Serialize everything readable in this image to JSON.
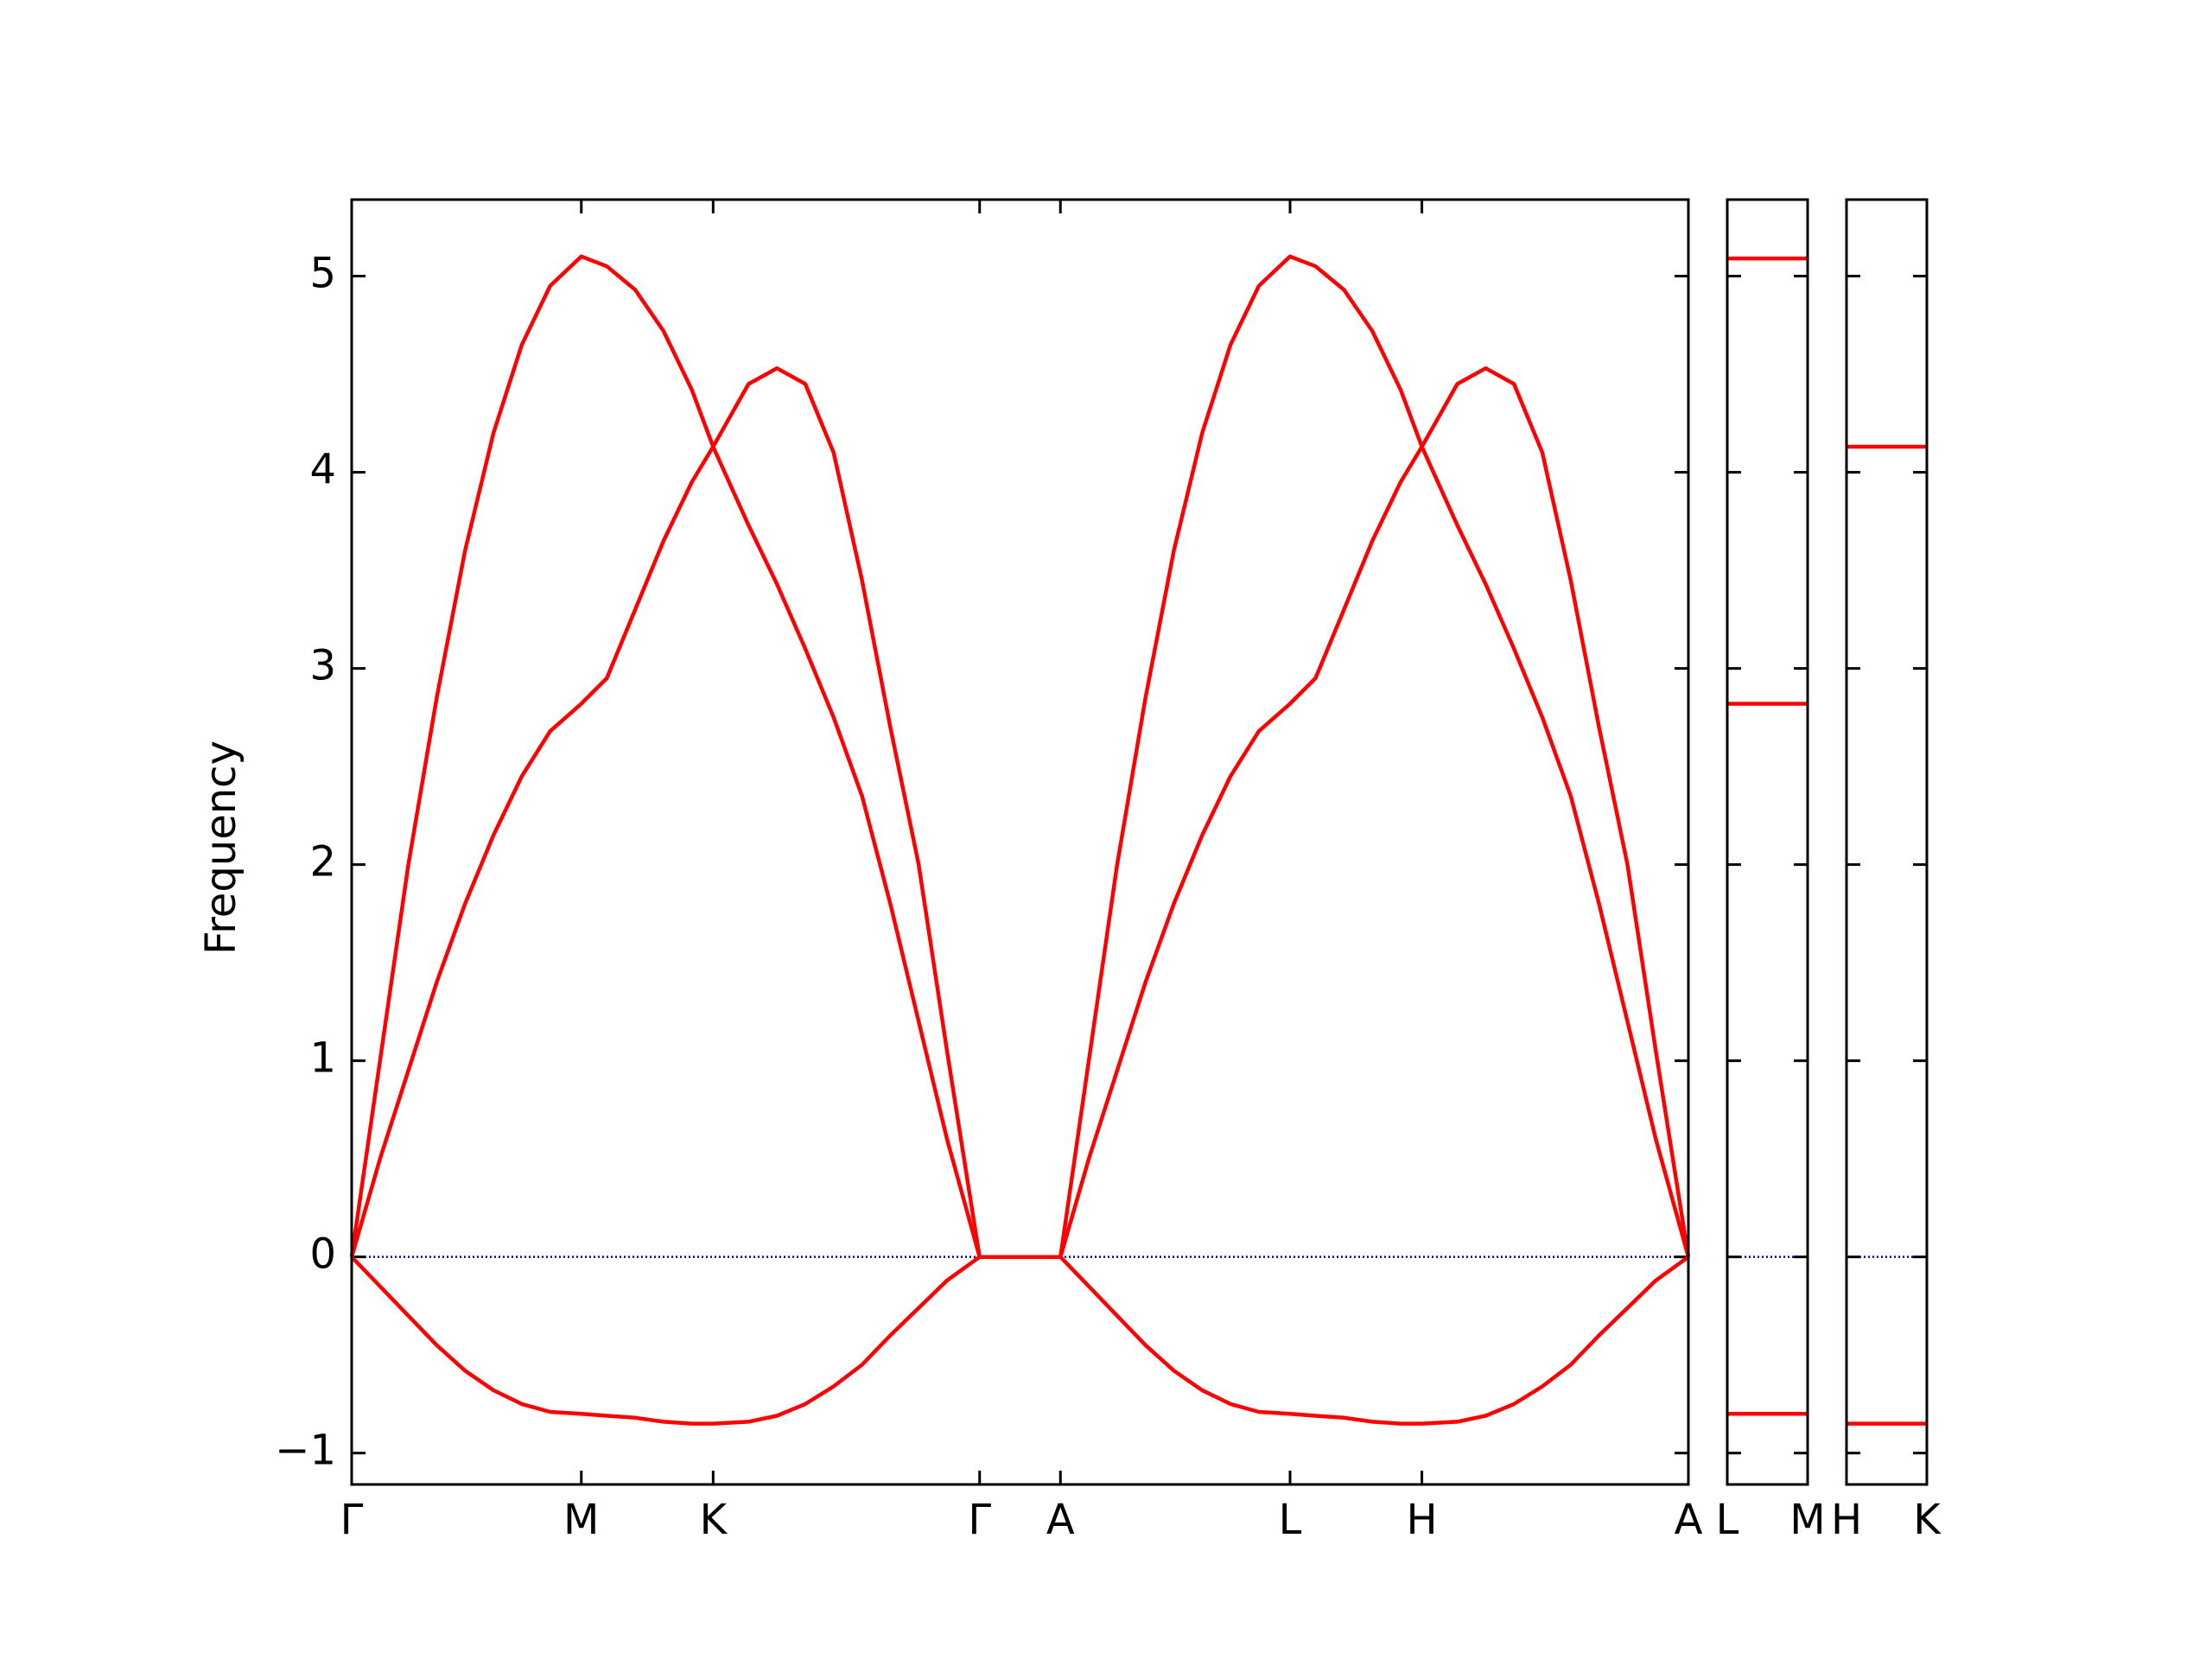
{
  "chart_data": [
    {
      "type": "line",
      "ylabel": "Frequency",
      "color": "#ff0000",
      "zero_line": true,
      "zero_line_color": "#0000cc",
      "x": [
        0,
        0.2,
        0.4,
        0.6,
        0.8,
        1.0,
        1.2,
        1.4,
        1.62,
        1.8,
        2.0,
        2.2,
        2.4,
        2.55,
        2.8,
        3.0,
        3.2,
        3.4,
        3.6,
        3.8,
        4.0,
        4.2,
        4.43,
        5.0,
        5.2,
        5.4,
        5.6,
        5.8,
        6.0,
        6.2,
        6.4,
        6.62,
        6.8,
        7.0,
        7.2,
        7.4,
        7.55,
        7.8,
        8.0,
        8.2,
        8.4,
        8.6,
        8.8,
        9.0,
        9.2,
        9.43
      ],
      "series": [
        {
          "values": [
            0,
            1.0,
            2.0,
            2.85,
            3.6,
            4.2,
            4.65,
            4.95,
            5.1,
            5.05,
            4.93,
            4.72,
            4.42,
            4.13,
            3.73,
            3.43,
            3.1,
            2.75,
            2.35,
            1.8,
            1.2,
            0.6,
            0,
            0,
            1.0,
            2.0,
            2.85,
            3.6,
            4.2,
            4.65,
            4.95,
            5.1,
            5.05,
            4.93,
            4.72,
            4.42,
            4.13,
            3.73,
            3.43,
            3.1,
            2.75,
            2.35,
            1.8,
            1.2,
            0.6,
            0
          ]
        },
        {
          "values": [
            0,
            0.5,
            0.95,
            1.4,
            1.8,
            2.15,
            2.45,
            2.68,
            2.82,
            2.95,
            3.3,
            3.65,
            3.95,
            4.13,
            4.45,
            4.53,
            4.45,
            4.1,
            3.45,
            2.7,
            2.0,
            1.05,
            0,
            0,
            0.5,
            0.95,
            1.4,
            1.8,
            2.15,
            2.45,
            2.68,
            2.82,
            2.95,
            3.3,
            3.65,
            3.95,
            4.13,
            4.45,
            4.53,
            4.45,
            4.1,
            3.45,
            2.7,
            2.0,
            1.05,
            0
          ]
        },
        {
          "values": [
            0,
            -0.15,
            -0.3,
            -0.45,
            -0.58,
            -0.68,
            -0.75,
            -0.79,
            -0.8,
            -0.81,
            -0.82,
            -0.84,
            -0.85,
            -0.85,
            -0.84,
            -0.81,
            -0.75,
            -0.66,
            -0.55,
            -0.4,
            -0.26,
            -0.12,
            0,
            0,
            -0.15,
            -0.3,
            -0.45,
            -0.58,
            -0.68,
            -0.75,
            -0.79,
            -0.8,
            -0.81,
            -0.82,
            -0.84,
            -0.85,
            -0.85,
            -0.84,
            -0.81,
            -0.75,
            -0.66,
            -0.55,
            -0.4,
            -0.26,
            -0.12,
            0
          ]
        }
      ],
      "xlim": [
        0,
        9.43
      ],
      "xticks": [
        {
          "value": 0,
          "label": "Γ"
        },
        {
          "value": 1.62,
          "label": "M"
        },
        {
          "value": 2.55,
          "label": "K"
        },
        {
          "value": 4.43,
          "label": "Γ"
        },
        {
          "value": 5.0,
          "label": "A"
        },
        {
          "value": 6.62,
          "label": "L"
        },
        {
          "value": 7.55,
          "label": "H"
        },
        {
          "value": 9.43,
          "label": "A"
        }
      ],
      "ylim": [
        -1.16,
        5.39
      ],
      "yticks": [
        {
          "value": -1,
          "label": "−1"
        },
        0,
        1,
        2,
        3,
        4,
        5
      ]
    },
    {
      "type": "hline",
      "color": "#ff0000",
      "zero_line": true,
      "zero_line_color": "#0000cc",
      "values": [
        5.09,
        2.82,
        -0.8
      ],
      "xlim": [
        0,
        1
      ],
      "xticks": [
        {
          "value": 0,
          "label": "L"
        },
        {
          "value": 1,
          "label": "M"
        }
      ],
      "ylim": [
        -1.16,
        5.39
      ],
      "yticks": [
        {
          "value": -1,
          "label": "−1"
        },
        0,
        1,
        2,
        3,
        4,
        5
      ]
    },
    {
      "type": "hline",
      "color": "#ff0000",
      "zero_line": true,
      "zero_line_color": "#0000cc",
      "values": [
        4.13,
        -0.85
      ],
      "xlim": [
        0,
        1
      ],
      "xticks": [
        {
          "value": 0,
          "label": "H"
        },
        {
          "value": 1,
          "label": "K"
        }
      ],
      "ylim": [
        -1.16,
        5.39
      ],
      "yticks": [
        {
          "value": -1,
          "label": "−1"
        },
        0,
        1,
        2,
        3,
        4,
        5
      ]
    }
  ]
}
